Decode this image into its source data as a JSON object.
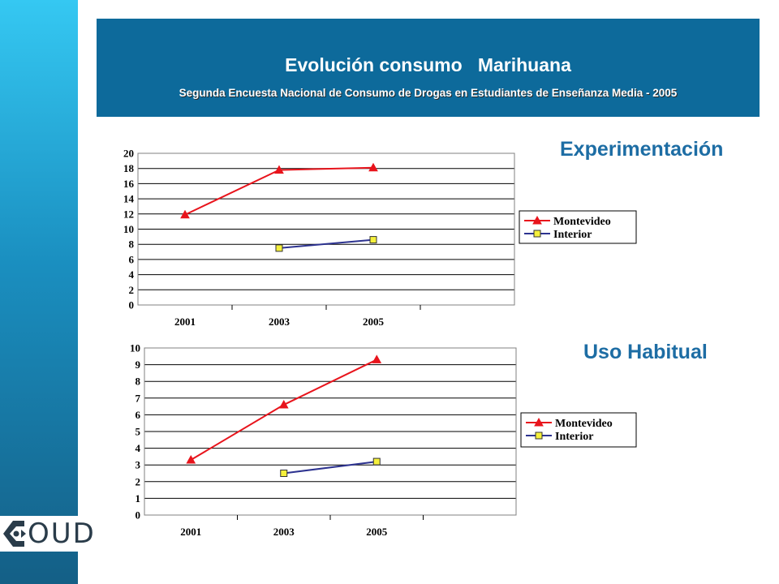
{
  "header": {
    "title": "Evolución consumo   Marihuana",
    "subtitle": "Segunda Encuesta Nacional de Consumo de Drogas en Estudiantes de Enseñanza Media - 2005"
  },
  "logo": {
    "text": "OUD"
  },
  "colors": {
    "montevideo": "#e8141c",
    "interior": "#2d3390",
    "interior_marker": "#f5f03c",
    "header_bg": "#0d6a9b",
    "label": "#1d6da4"
  },
  "chart_data": [
    {
      "type": "line",
      "label": "Experimentación",
      "categories": [
        "2001",
        "2003",
        "2005"
      ],
      "ylim": [
        0,
        20
      ],
      "yticks": [
        "0",
        "2",
        "4",
        "6",
        "8",
        "10",
        "12",
        "14",
        "16",
        "18",
        "20"
      ],
      "grid": true,
      "legend": "right",
      "series": [
        {
          "name": "Montevideo",
          "values": [
            11.9,
            17.8,
            18.1
          ]
        },
        {
          "name": "Interior",
          "values": [
            null,
            7.5,
            8.6
          ]
        }
      ]
    },
    {
      "type": "line",
      "label": "Uso Habitual",
      "categories": [
        "2001",
        "2003",
        "2005"
      ],
      "ylim": [
        0,
        10
      ],
      "yticks": [
        "0",
        "1",
        "2",
        "3",
        "4",
        "5",
        "6",
        "7",
        "8",
        "9",
        "10"
      ],
      "grid": true,
      "legend": "right",
      "series": [
        {
          "name": "Montevideo",
          "values": [
            3.3,
            6.6,
            9.3
          ]
        },
        {
          "name": "Interior",
          "values": [
            null,
            2.5,
            3.2
          ]
        }
      ]
    }
  ]
}
